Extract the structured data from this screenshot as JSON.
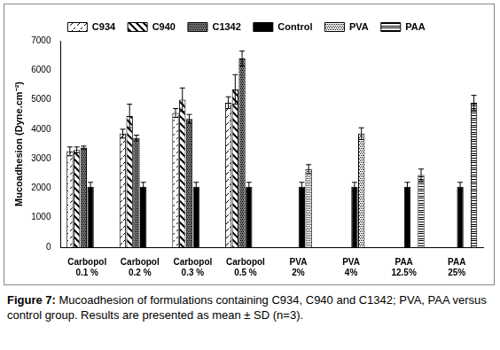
{
  "chart_data": {
    "type": "bar",
    "caption": "Figure 7: Mucoadhesion of formulations containing C934, C940 and C1342; PVA, PAA versus control group. Results are presented as mean ± SD (n=3).",
    "y_label": "Mucoadhesion (Dyne.cm⁻²)",
    "categories": [
      "Carbopol 0.1 %",
      "Carbopol 0.2 %",
      "Carbopol 0.3 %",
      "Carbopol 0.5 %",
      "PVA 2%",
      "PVA 4%",
      "PAA 12.5%",
      "PAA 25%"
    ],
    "series": [
      {
        "name": "C934",
        "color": "#000000",
        "values": [
          3250,
          3850,
          4550,
          4900,
          null,
          null,
          null,
          null
        ],
        "errors": [
          150,
          150,
          150,
          200,
          null,
          null,
          null,
          null
        ]
      },
      {
        "name": "C940",
        "color": "#000000",
        "values": [
          3300,
          4450,
          5000,
          5350,
          null,
          null,
          null,
          null
        ],
        "errors": [
          100,
          400,
          400,
          500,
          null,
          null,
          null,
          null
        ]
      },
      {
        "name": "C1342",
        "color": "#000000",
        "values": [
          3380,
          3700,
          4350,
          6400,
          null,
          null,
          null,
          null
        ],
        "errors": [
          50,
          100,
          150,
          250,
          null,
          null,
          null,
          null
        ]
      },
      {
        "name": "Control",
        "color": "#000000",
        "values": [
          2050,
          2050,
          2050,
          2050,
          2050,
          2050,
          2050,
          2050
        ],
        "errors": [
          150,
          150,
          150,
          150,
          150,
          150,
          150,
          150
        ]
      },
      {
        "name": "PVA",
        "color": "#000000",
        "values": [
          null,
          null,
          null,
          null,
          2650,
          3850,
          null,
          null
        ],
        "errors": [
          null,
          null,
          null,
          null,
          150,
          200,
          null,
          null
        ]
      },
      {
        "name": "PAA",
        "color": "#000000",
        "values": [
          null,
          null,
          null,
          null,
          null,
          null,
          2450,
          4900
        ],
        "errors": [
          null,
          null,
          null,
          null,
          null,
          null,
          200,
          250
        ]
      }
    ],
    "ylim": [
      0,
      7000
    ],
    "yticks": [
      0,
      1000,
      2000,
      3000,
      4000,
      5000,
      6000,
      7000
    ],
    "grid": false,
    "legend": "top"
  }
}
